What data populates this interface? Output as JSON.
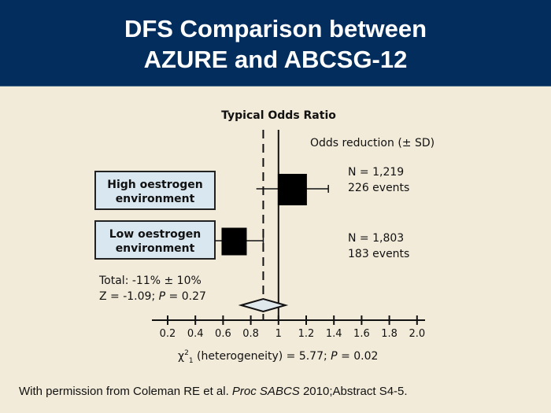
{
  "header": {
    "title_line1": "DFS Comparison between",
    "title_line2": "AZURE and ABCSG-12"
  },
  "colors": {
    "header_bg": "#032d5d",
    "background": "#f2ebda",
    "label_box": "#d9e8f0",
    "diamond": "#dfe8ec"
  },
  "chart_data": {
    "type": "forest",
    "title": "Typical Odds Ratio",
    "column_header": "Odds reduction (± SD)",
    "xlim": [
      0.1,
      2.05
    ],
    "xticks": [
      0.2,
      0.4,
      0.6,
      0.8,
      1,
      1.2,
      1.4,
      1.6,
      1.8,
      2.0
    ],
    "xtick_labels": [
      "0.2",
      "0.4",
      "0.6",
      "0.8",
      "1",
      "1.2",
      "1.4",
      "1.6",
      "1.8",
      "2.0"
    ],
    "reference_line": 1,
    "dashed_line": 0.89,
    "rows": [
      {
        "label_line1": "High oestrogen",
        "label_line2": "environment",
        "or": 1.1,
        "ci_low": 0.84,
        "ci_high": 1.36,
        "n_text": "N = 1,219",
        "events_text": "226 events"
      },
      {
        "label_line1": "Low oestrogen",
        "label_line2": "environment",
        "or": 0.68,
        "ci_low": 0.54,
        "ci_high": 0.89,
        "n_text": "N = 1,803",
        "events_text": "183 events"
      }
    ],
    "total": {
      "or": 0.89,
      "ci_low": 0.73,
      "ci_high": 1.05,
      "line1": "Total: -11% ± 10%",
      "line2_prefix": "Z = -1.09; ",
      "line2_p": "P",
      "line2_suffix": " = 0.27"
    },
    "heterogeneity": {
      "chi": "χ",
      "sup": "2",
      "sub": "1",
      "text": " (heterogeneity) = 5.77; ",
      "p": "P",
      "suffix": " = 0.02"
    }
  },
  "footer": {
    "prefix": "With permission from Coleman RE et al. ",
    "journal": "Proc SABCS",
    "suffix": " 2010;Abstract S4-5."
  }
}
